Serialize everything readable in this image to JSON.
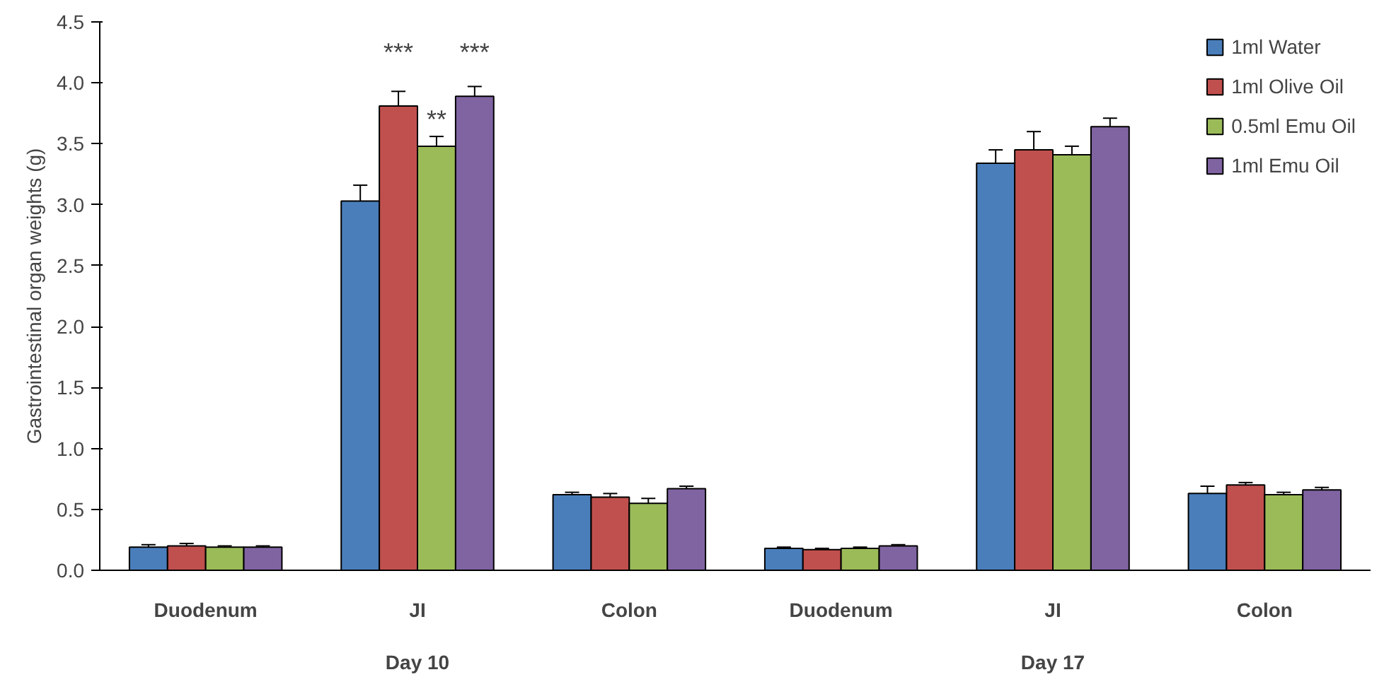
{
  "chart_data": {
    "type": "bar",
    "ylabel": "Gastrointestinal organ weights (g)",
    "categories": [
      "Duodenum",
      "JI",
      "Colon",
      "Duodenum",
      "JI",
      "Colon"
    ],
    "series": [
      {
        "name": "1ml Water",
        "color": "#4a7ebb",
        "values": [
          0.19,
          3.03,
          0.62,
          0.18,
          3.34,
          0.63
        ],
        "errors": [
          0.02,
          0.13,
          0.02,
          0.01,
          0.11,
          0.06
        ]
      },
      {
        "name": "1ml Olive Oil",
        "color": "#c0504d",
        "values": [
          0.2,
          3.81,
          0.6,
          0.17,
          3.45,
          0.7
        ],
        "errors": [
          0.02,
          0.12,
          0.03,
          0.01,
          0.15,
          0.02
        ]
      },
      {
        "name": "0.5ml Emu Oil",
        "color": "#9bbb59",
        "values": [
          0.19,
          3.48,
          0.55,
          0.18,
          3.41,
          0.62
        ],
        "errors": [
          0.01,
          0.08,
          0.04,
          0.01,
          0.07,
          0.02
        ]
      },
      {
        "name": "1ml Emu Oil",
        "color": "#8064a2",
        "values": [
          0.19,
          3.89,
          0.67,
          0.2,
          3.64,
          0.66
        ],
        "errors": [
          0.01,
          0.08,
          0.02,
          0.01,
          0.07,
          0.02
        ]
      }
    ],
    "ylim": [
      0,
      4.5
    ],
    "yticks": [
      {
        "value": 0,
        "label": "0.0"
      },
      0.5,
      {
        "value": 1,
        "label": "1.0"
      },
      1.5,
      {
        "value": 2,
        "label": "2.0"
      },
      2.5,
      {
        "value": 3,
        "label": "3.0"
      },
      3.5,
      {
        "value": 4,
        "label": "4.0"
      },
      4.5
    ],
    "grid": false,
    "legend": "top right",
    "annotations": [
      "***",
      "**",
      "***",
      "Day 10",
      "Day 17"
    ]
  }
}
